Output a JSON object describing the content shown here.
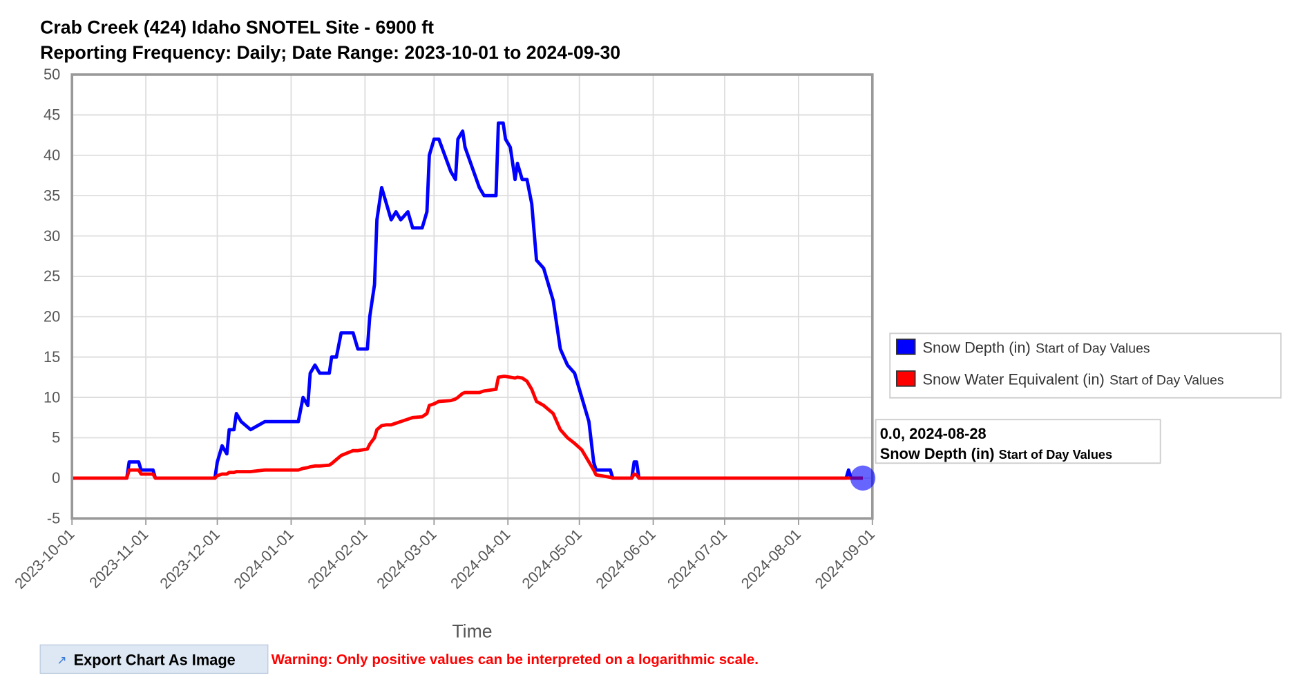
{
  "chart_data": {
    "type": "line",
    "title": "Crab Creek (424) Idaho SNOTEL Site - 6900 ft",
    "subtitle": "Reporting Frequency: Daily; Date Range: 2023-10-01 to 2024-09-30",
    "x_label": "Time",
    "x": [
      "2023-10-01",
      "2023-10-24",
      "2023-10-25",
      "2023-10-29",
      "2023-10-30",
      "2023-11-04",
      "2023-11-05",
      "2023-11-30",
      "2023-12-01",
      "2023-12-03",
      "2023-12-05",
      "2023-12-06",
      "2023-12-08",
      "2023-12-09",
      "2023-12-11",
      "2023-12-15",
      "2023-12-21",
      "2024-01-04",
      "2024-01-06",
      "2024-01-08",
      "2024-01-09",
      "2024-01-11",
      "2024-01-13",
      "2024-01-17",
      "2024-01-18",
      "2024-01-20",
      "2024-01-22",
      "2024-01-27",
      "2024-01-29",
      "2024-02-02",
      "2024-02-03",
      "2024-02-05",
      "2024-02-06",
      "2024-02-08",
      "2024-02-10",
      "2024-02-12",
      "2024-02-14",
      "2024-02-16",
      "2024-02-19",
      "2024-02-21",
      "2024-02-25",
      "2024-02-27",
      "2024-02-28",
      "2024-03-01",
      "2024-03-03",
      "2024-03-08",
      "2024-03-10",
      "2024-03-11",
      "2024-03-13",
      "2024-03-14",
      "2024-03-20",
      "2024-03-22",
      "2024-03-27",
      "2024-03-28",
      "2024-03-30",
      "2024-03-31",
      "2024-04-02",
      "2024-04-04",
      "2024-04-05",
      "2024-04-07",
      "2024-04-09",
      "2024-04-11",
      "2024-04-13",
      "2024-04-16",
      "2024-04-20",
      "2024-04-23",
      "2024-04-26",
      "2024-04-29",
      "2024-05-02",
      "2024-05-05",
      "2024-05-07",
      "2024-05-08",
      "2024-05-14",
      "2024-05-15",
      "2024-05-23",
      "2024-05-24",
      "2024-05-25",
      "2024-05-26",
      "2024-08-21",
      "2024-08-22",
      "2024-08-23",
      "2024-08-28"
    ],
    "series": [
      {
        "name": "Snow Depth (in)",
        "value_type": "Start of Day Values",
        "color": "#0000ff",
        "values": [
          0,
          0,
          2,
          2,
          1,
          1,
          0,
          0,
          2,
          4,
          3,
          6,
          6,
          8,
          7,
          6,
          7,
          7,
          10,
          9,
          13,
          14,
          13,
          13,
          15,
          15,
          18,
          18,
          16,
          16,
          20,
          24,
          32,
          36,
          34,
          32,
          33,
          32,
          33,
          31,
          31,
          33,
          40,
          42,
          42,
          38,
          37,
          42,
          43,
          41,
          36,
          35,
          35,
          44,
          44,
          42,
          41,
          37,
          39,
          37,
          37,
          34,
          27,
          26,
          22,
          16,
          14,
          13,
          10,
          7,
          2,
          1,
          1,
          0,
          0,
          2,
          2,
          0,
          0,
          1,
          0,
          0
        ]
      },
      {
        "name": "Snow Water Equivalent (in)",
        "value_type": "Start of Day Values",
        "color": "#ff0000",
        "values": [
          0,
          0,
          1,
          1,
          0.5,
          0.5,
          0,
          0,
          0.3,
          0.5,
          0.5,
          0.7,
          0.7,
          0.8,
          0.8,
          0.8,
          1,
          1,
          1.2,
          1.3,
          1.4,
          1.5,
          1.5,
          1.6,
          1.8,
          2.3,
          2.8,
          3.4,
          3.4,
          3.6,
          4.2,
          5,
          6,
          6.5,
          6.6,
          6.6,
          6.8,
          7,
          7.3,
          7.5,
          7.6,
          8,
          9,
          9.2,
          9.5,
          9.6,
          9.8,
          10,
          10.5,
          10.6,
          10.6,
          10.8,
          11,
          12.5,
          12.6,
          12.6,
          12.5,
          12.4,
          12.5,
          12.4,
          12,
          11,
          9.5,
          9,
          8,
          6,
          5,
          4.3,
          3.5,
          2,
          1,
          0.4,
          0.1,
          0,
          0,
          0.5,
          0.4,
          0,
          0,
          0,
          0,
          0
        ]
      }
    ],
    "xlim": [
      "2023-10-01",
      "2024-09-01"
    ],
    "xticks": [
      "2023-10-01",
      "2023-11-01",
      "2023-12-01",
      "2024-01-01",
      "2024-02-01",
      "2024-03-01",
      "2024-04-01",
      "2024-05-01",
      "2024-06-01",
      "2024-07-01",
      "2024-08-01",
      "2024-09-01"
    ],
    "ylim": [
      -5,
      50
    ],
    "yticks": [
      -5,
      0,
      5,
      10,
      15,
      20,
      25,
      30,
      35,
      40,
      45,
      50
    ],
    "grid": true,
    "legend_position": "right",
    "tooltip": {
      "label": "0.0, 2024-08-28",
      "series": "Snow Depth (in)",
      "value_type": "Start of Day Values"
    }
  },
  "export_button": "Export Chart As Image",
  "warning": "Warning: Only positive values can be interpreted on a logarithmic scale."
}
